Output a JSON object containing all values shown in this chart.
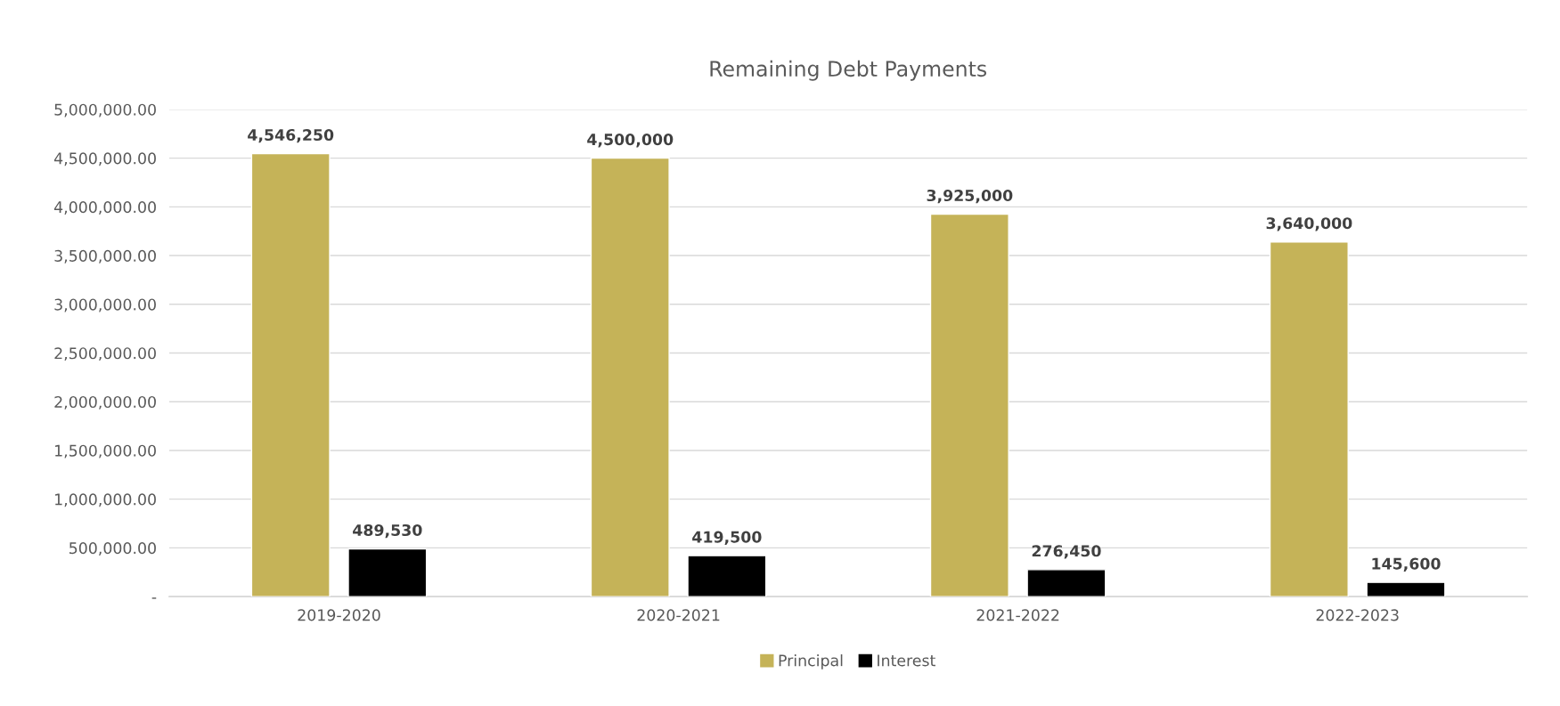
{
  "chart_data": {
    "type": "bar",
    "title": "Remaining Debt Payments",
    "categories": [
      "2019-2020",
      "2020-2021",
      "2021-2022",
      "2022-2023"
    ],
    "series": [
      {
        "name": "Principal",
        "color": "#c5b358",
        "values": [
          4546250,
          4500000,
          3925000,
          3640000
        ],
        "value_labels": [
          "4,546,250",
          "4,500,000",
          "3,925,000",
          "3,640,000"
        ]
      },
      {
        "name": "Interest",
        "color": "#000000",
        "values": [
          489530,
          419500,
          276450,
          145600
        ],
        "value_labels": [
          "489,530",
          "419,500",
          "276,450",
          "145,600"
        ]
      }
    ],
    "ylim": [
      0,
      5000000
    ],
    "yticks": [
      {
        "value": 0,
        "label": "-"
      },
      {
        "value": 500000,
        "label": "500,000.00"
      },
      {
        "value": 1000000,
        "label": "1,000,000.00"
      },
      {
        "value": 1500000,
        "label": "1,500,000.00"
      },
      {
        "value": 2000000,
        "label": "2,000,000.00"
      },
      {
        "value": 2500000,
        "label": "2,500,000.00"
      },
      {
        "value": 3000000,
        "label": "3,000,000.00"
      },
      {
        "value": 3500000,
        "label": "3,500,000.00"
      },
      {
        "value": 4000000,
        "label": "4,000,000.00"
      },
      {
        "value": 4500000,
        "label": "4,500,000.00"
      },
      {
        "value": 5000000,
        "label": "5,000,000.00"
      }
    ],
    "grid": "y",
    "legend": "bottom"
  }
}
